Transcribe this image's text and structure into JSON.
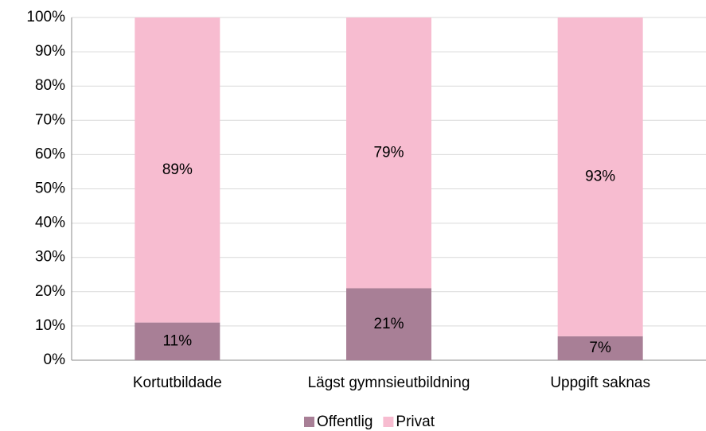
{
  "chart_data": {
    "type": "stacked_bar",
    "categories": [
      "Kortutbildade",
      "Lägst gymnsieutbildning",
      "Uppgift saknas"
    ],
    "series": [
      {
        "name": "Offentlig",
        "color": "#a87f96",
        "values": [
          11,
          21,
          7
        ],
        "value_labels": [
          "11%",
          "21%",
          "7%"
        ]
      },
      {
        "name": "Privat",
        "color": "#f7bcd0",
        "values": [
          89,
          79,
          93
        ],
        "value_labels": [
          "89%",
          "79%",
          "93%"
        ]
      }
    ],
    "ylim": [
      0,
      100
    ],
    "yticks": [
      {
        "value": 0,
        "label": "0%"
      },
      {
        "value": 10,
        "label": "10%"
      },
      {
        "value": 20,
        "label": "20%"
      },
      {
        "value": 30,
        "label": "30%"
      },
      {
        "value": 40,
        "label": "40%"
      },
      {
        "value": 50,
        "label": "50%"
      },
      {
        "value": 60,
        "label": "60%"
      },
      {
        "value": 70,
        "label": "70%"
      },
      {
        "value": 80,
        "label": "80%"
      },
      {
        "value": 90,
        "label": "90%"
      },
      {
        "value": 100,
        "label": "100%"
      }
    ],
    "grid": true,
    "legend": "bottom"
  }
}
